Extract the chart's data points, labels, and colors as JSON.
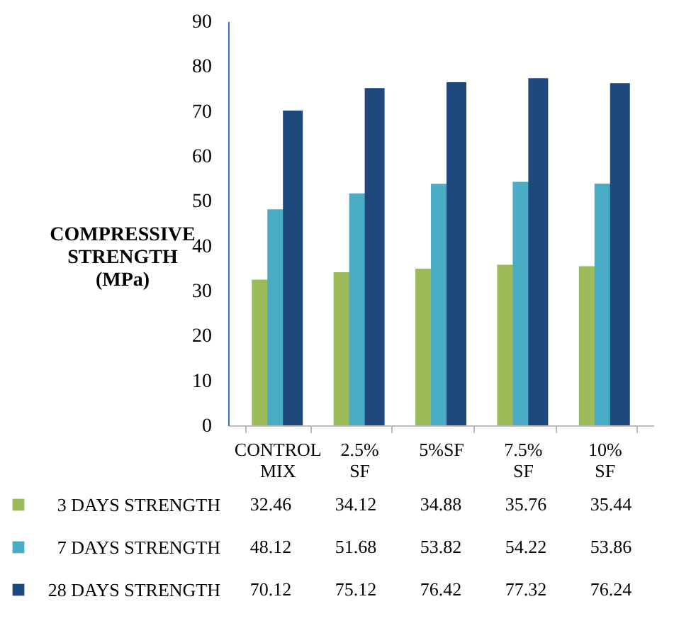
{
  "chart_data": {
    "type": "bar",
    "ylabel": "COMPRESSIVE STRENGTH (MPa)",
    "categories": [
      "CONTROL MIX",
      "2.5% SF",
      "5%SF",
      "7.5% SF",
      "10% SF"
    ],
    "series": [
      {
        "name": "3 DAYS STRENGTH",
        "color": "#9bbb59",
        "values": [
          32.46,
          34.12,
          34.88,
          35.76,
          35.44
        ]
      },
      {
        "name": "7 DAYS STRENGTH",
        "color": "#4bacc6",
        "values": [
          48.12,
          51.68,
          53.82,
          54.22,
          53.86
        ]
      },
      {
        "name": "28 DAYS STRENGTH",
        "color": "#1f497d",
        "values": [
          70.12,
          75.12,
          76.42,
          77.32,
          76.24
        ]
      }
    ],
    "ylim": [
      0,
      90
    ],
    "yticks": [
      0,
      10,
      20,
      30,
      40,
      50,
      60,
      70,
      80,
      90
    ],
    "grid": false,
    "legend": "bottom",
    "data_labels": true
  }
}
